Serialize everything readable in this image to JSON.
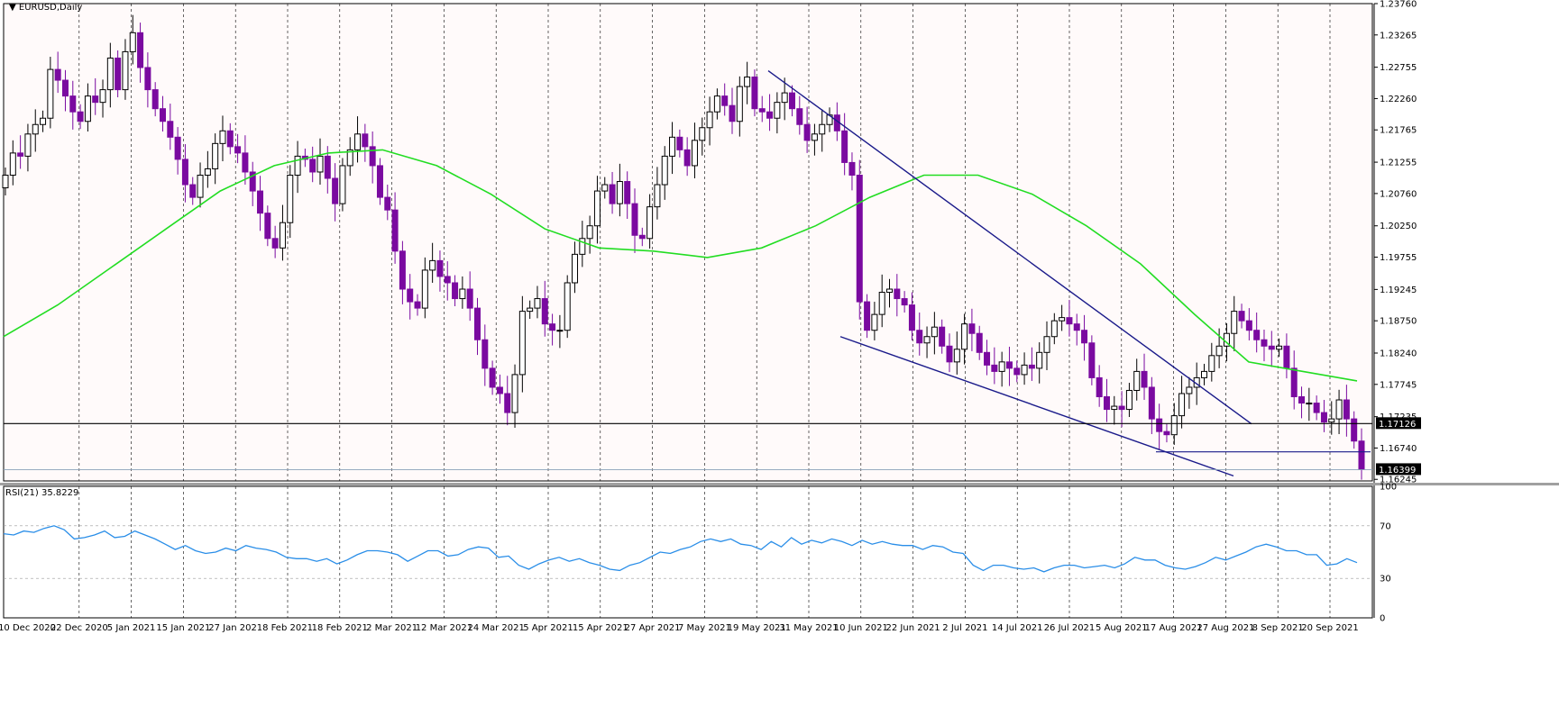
{
  "window": {
    "symbol_label": "EURUSD,Daily",
    "rsi_label": "RSI(21) 35.8229"
  },
  "colors": {
    "background": "#ffffff",
    "price_panel_bg": "#fffafa",
    "bull_candle": "#ffffff",
    "bear_candle": "#7a0aa0",
    "candle_outline": "#000000",
    "moving_average": "#22dd22",
    "trendline": "#1a1a8a",
    "horizontal_line": "#000000",
    "rsi_line": "#2a8ee8",
    "price_tag_bg": "#000000"
  },
  "chart_data": [
    {
      "type": "candlestick",
      "title": "EURUSD,Daily",
      "ylim": [
        1.1622,
        1.2376
      ],
      "y_ticks": [
        "1.23760",
        "1.23265",
        "1.22755",
        "1.22260",
        "1.21765",
        "1.21255",
        "1.20760",
        "1.20250",
        "1.19755",
        "1.19245",
        "1.18750",
        "1.18240",
        "1.17745",
        "1.17235",
        "1.16740",
        "1.16245"
      ],
      "x_ticks": [
        "10 Dec 2020",
        "22 Dec 2020",
        "5 Jan 2021",
        "15 Jan 2021",
        "27 Jan 2021",
        "8 Feb 2021",
        "18 Feb 2021",
        "2 Mar 2021",
        "12 Mar 2021",
        "24 Mar 2021",
        "5 Apr 2021",
        "15 Apr 2021",
        "27 Apr 2021",
        "7 May 2021",
        "19 May 2021",
        "31 May 2021",
        "10 Jun 2021",
        "22 Jun 2021",
        "2 Jul 2021",
        "14 Jul 2021",
        "26 Jul 2021",
        "5 Aug 2021",
        "17 Aug 2021",
        "27 Aug 2021",
        "8 Sep 2021",
        "20 Sep 2021"
      ],
      "close_path": [
        1.2105,
        1.214,
        1.2135,
        1.217,
        1.2185,
        1.2195,
        1.2272,
        1.2255,
        1.223,
        1.2205,
        1.219,
        1.223,
        1.222,
        1.224,
        1.229,
        1.224,
        1.23,
        1.233,
        1.2275,
        1.224,
        1.221,
        1.219,
        1.2165,
        1.213,
        1.209,
        1.207,
        1.2105,
        1.2115,
        1.2155,
        1.2175,
        1.215,
        1.214,
        1.211,
        1.208,
        1.2045,
        1.2005,
        1.199,
        1.203,
        1.2105,
        1.2135,
        1.213,
        1.211,
        1.2135,
        1.21,
        1.206,
        1.212,
        1.2145,
        1.217,
        1.215,
        1.212,
        1.207,
        1.205,
        1.1985,
        1.1925,
        1.1905,
        1.1895,
        1.1955,
        1.197,
        1.1945,
        1.1935,
        1.191,
        1.1925,
        1.1895,
        1.1845,
        1.18,
        1.177,
        1.176,
        1.173,
        1.179,
        1.189,
        1.1895,
        1.191,
        1.187,
        1.186,
        1.186,
        1.1935,
        1.198,
        1.2005,
        1.2025,
        1.208,
        1.209,
        1.206,
        1.2095,
        1.206,
        1.201,
        1.2005,
        1.2055,
        1.209,
        1.2135,
        1.2165,
        1.2145,
        1.212,
        1.216,
        1.218,
        1.2205,
        1.223,
        1.2215,
        1.219,
        1.2245,
        1.226,
        1.221,
        1.2205,
        1.2195,
        1.222,
        1.2235,
        1.221,
        1.2185,
        1.216,
        1.217,
        1.2185,
        1.22,
        1.2175,
        1.2125,
        1.2105,
        1.1905,
        1.186,
        1.1885,
        1.192,
        1.1925,
        1.191,
        1.19,
        1.186,
        1.184,
        1.185,
        1.1865,
        1.1835,
        1.181,
        1.183,
        1.187,
        1.1855,
        1.1825,
        1.1805,
        1.1795,
        1.181,
        1.18,
        1.179,
        1.1805,
        1.18,
        1.1825,
        1.185,
        1.1875,
        1.188,
        1.187,
        1.186,
        1.184,
        1.1785,
        1.1755,
        1.1735,
        1.174,
        1.1735,
        1.1765,
        1.1795,
        1.177,
        1.172,
        1.17,
        1.1695,
        1.1725,
        1.176,
        1.177,
        1.1785,
        1.1795,
        1.182,
        1.1835,
        1.1855,
        1.189,
        1.1875,
        1.186,
        1.1845,
        1.1835,
        1.183,
        1.1835,
        1.18,
        1.1755,
        1.1745,
        1.1745,
        1.173,
        1.1715,
        1.172,
        1.175,
        1.172,
        1.1685,
        1.164
      ],
      "moving_average_path": [
        1.185,
        1.19,
        1.196,
        1.202,
        1.208,
        1.212,
        1.214,
        1.2145,
        1.212,
        1.2075,
        1.202,
        1.199,
        1.1985,
        1.1975,
        1.199,
        1.2025,
        1.207,
        1.2105,
        1.2105,
        1.2075,
        1.2025,
        1.1965,
        1.1885,
        1.181,
        1.1795,
        1.178
      ],
      "support_level": 1.17126,
      "current_price": 1.16399,
      "current_price_tag": "1.16399",
      "support_tag": "1.17126",
      "upper_trendline": [
        [
          1.227,
          0.0
        ],
        [
          1.1712,
          1.0
        ]
      ],
      "lower_trendline": [
        [
          1.185,
          0.0
        ],
        [
          1.163,
          1.0
        ]
      ],
      "short_horizontal": 1.1668
    },
    {
      "type": "line",
      "title": "RSI(21) 35.8229",
      "ylim": [
        0,
        100
      ],
      "y_ticks": [
        "100",
        "70",
        "30",
        "0"
      ],
      "levels": [
        70,
        30
      ],
      "values": [
        64,
        63,
        66,
        65,
        68,
        70,
        67,
        60,
        61,
        63,
        66,
        61,
        62,
        66,
        63,
        60,
        56,
        52,
        55,
        51,
        49,
        50,
        53,
        51,
        55,
        53,
        52,
        50,
        46,
        45,
        45,
        43,
        45,
        41,
        44,
        48,
        51,
        51,
        50,
        48,
        43,
        47,
        51,
        51,
        47,
        48,
        52,
        54,
        53,
        46,
        47,
        40,
        37,
        41,
        44,
        46,
        43,
        45,
        42,
        40,
        37,
        36,
        40,
        42,
        46,
        50,
        49,
        52,
        54,
        58,
        60,
        58,
        60,
        56,
        55,
        52,
        58,
        54,
        61,
        56,
        59,
        57,
        60,
        58,
        55,
        59,
        56,
        58,
        56,
        55,
        55,
        52,
        55,
        54,
        50,
        49,
        40,
        36,
        40,
        40,
        38,
        37,
        38,
        35,
        38,
        40,
        40,
        38,
        39,
        40,
        38,
        41,
        46,
        44,
        44,
        40,
        38,
        37,
        39,
        42,
        46,
        44,
        47,
        50,
        54,
        56,
        54,
        51,
        51,
        48,
        48,
        40,
        41,
        45,
        42
      ]
    }
  ]
}
